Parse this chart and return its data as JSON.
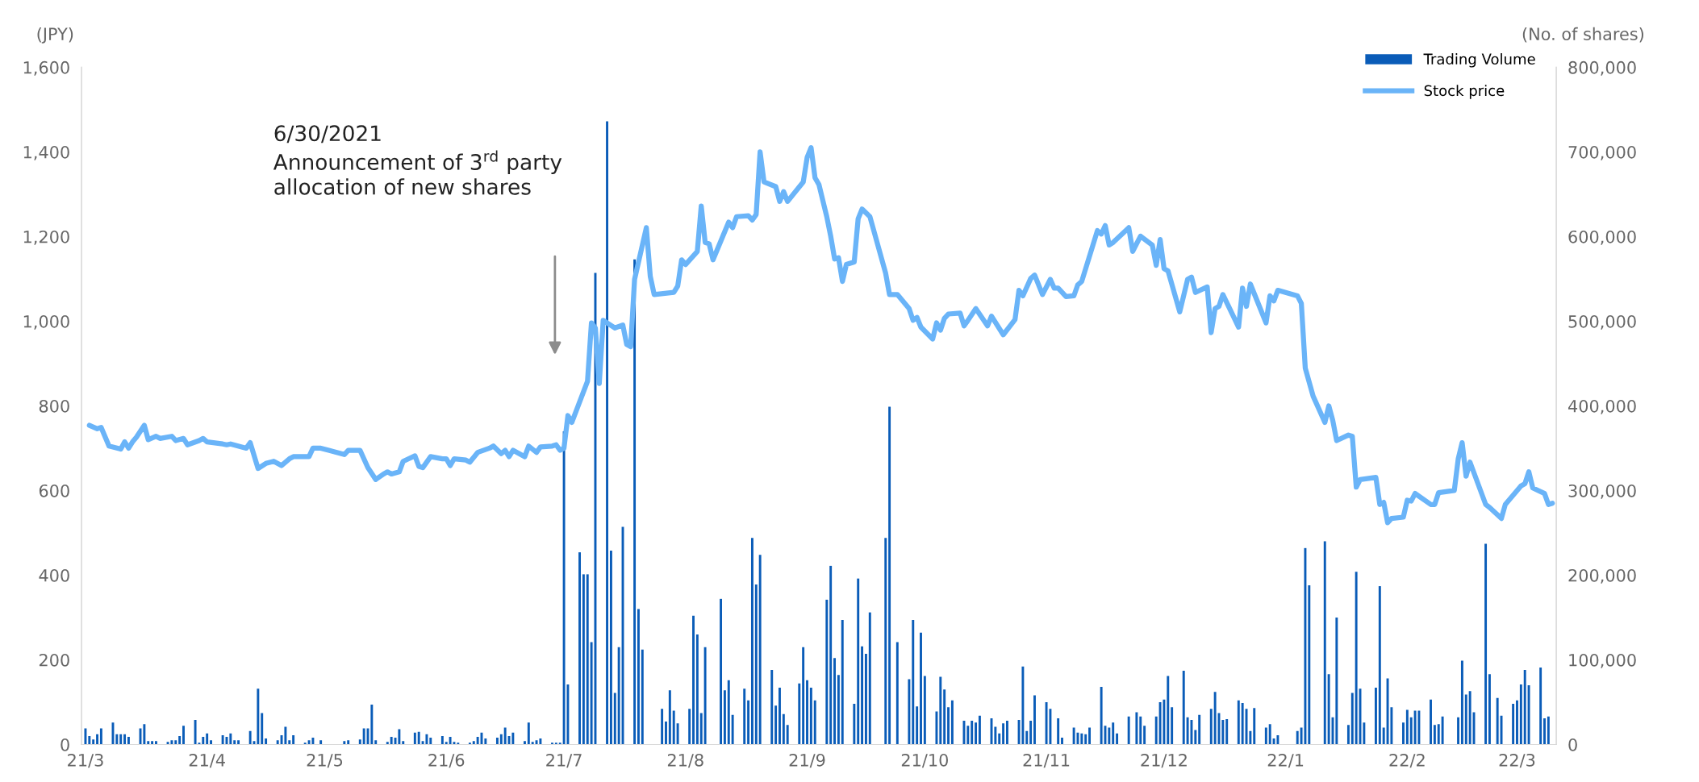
{
  "chart_data": {
    "type": "bar",
    "ylabel": "(JPY)",
    "y2label": "(No. of shares)",
    "xlim": [
      "2021-02-28",
      "2022-03-11"
    ],
    "xticks": [
      {
        "value": "2021-03-01",
        "label": "21/3"
      },
      {
        "value": "2021-04-01",
        "label": "21/4"
      },
      {
        "value": "2021-05-01",
        "label": "21/5"
      },
      {
        "value": "2021-06-01",
        "label": "21/6"
      },
      {
        "value": "2021-07-01",
        "label": "21/7"
      },
      {
        "value": "2021-08-01",
        "label": "21/8"
      },
      {
        "value": "2021-09-01",
        "label": "21/9"
      },
      {
        "value": "2021-10-01",
        "label": "21/10"
      },
      {
        "value": "2021-11-01",
        "label": "21/11"
      },
      {
        "value": "2021-12-01",
        "label": "21/12"
      },
      {
        "value": "2022-01-01",
        "label": "22/1"
      },
      {
        "value": "2022-02-01",
        "label": "22/2"
      },
      {
        "value": "2022-03-01",
        "label": "22/3"
      }
    ],
    "ylim": [
      0,
      1600
    ],
    "yticks": [
      {
        "value": 0,
        "label": "0"
      },
      {
        "value": 200,
        "label": "200"
      },
      {
        "value": 400,
        "label": "400"
      },
      {
        "value": 600,
        "label": "600"
      },
      {
        "value": 800,
        "label": "800"
      },
      {
        "value": 1000,
        "label": "1,000"
      },
      {
        "value": 1200,
        "label": "1,200"
      },
      {
        "value": 1400,
        "label": "1,400"
      },
      {
        "value": 1600,
        "label": "1,600"
      }
    ],
    "y2lim": [
      0,
      800000
    ],
    "y2ticks": [
      {
        "value": 0,
        "label": "0"
      },
      {
        "value": 100000,
        "label": "100,000"
      },
      {
        "value": 200000,
        "label": "200,000"
      },
      {
        "value": 300000,
        "label": "300,000"
      },
      {
        "value": 400000,
        "label": "400,000"
      },
      {
        "value": 500000,
        "label": "500,000"
      },
      {
        "value": 600000,
        "label": "600,000"
      },
      {
        "value": 700000,
        "label": "700,000"
      },
      {
        "value": 800000,
        "label": "800,000"
      }
    ],
    "grid": false,
    "legend": "top right",
    "annotations": [
      "6/30/2021\nAnnouncement of 3$^{rd}$ party\nallocation of new shares"
    ],
    "series": [
      {
        "name": "Trading Volume",
        "axis": "y2",
        "color": "#0a5cb8",
        "x": [
          "2021-03-01",
          "2021-03-02",
          "2021-03-03",
          "2021-03-04",
          "2021-03-05",
          "2021-03-08",
          "2021-03-09",
          "2021-03-10",
          "2021-03-11",
          "2021-03-12",
          "2021-03-15",
          "2021-03-16",
          "2021-03-17",
          "2021-03-18",
          "2021-03-19",
          "2021-03-22",
          "2021-03-23",
          "2021-03-24",
          "2021-03-25",
          "2021-03-26",
          "2021-03-29",
          "2021-03-30",
          "2021-03-31",
          "2021-04-01",
          "2021-04-02",
          "2021-04-05",
          "2021-04-06",
          "2021-04-07",
          "2021-04-08",
          "2021-04-09",
          "2021-04-12",
          "2021-04-13",
          "2021-04-14",
          "2021-04-15",
          "2021-04-16",
          "2021-04-19",
          "2021-04-20",
          "2021-04-21",
          "2021-04-22",
          "2021-04-23",
          "2021-04-26",
          "2021-04-27",
          "2021-04-28",
          "2021-04-30",
          "2021-05-06",
          "2021-05-07",
          "2021-05-10",
          "2021-05-11",
          "2021-05-12",
          "2021-05-13",
          "2021-05-14",
          "2021-05-17",
          "2021-05-18",
          "2021-05-19",
          "2021-05-20",
          "2021-05-21",
          "2021-05-24",
          "2021-05-25",
          "2021-05-26",
          "2021-05-27",
          "2021-05-28",
          "2021-05-31",
          "2021-06-01",
          "2021-06-02",
          "2021-06-03",
          "2021-06-04",
          "2021-06-07",
          "2021-06-08",
          "2021-06-09",
          "2021-06-10",
          "2021-06-11",
          "2021-06-14",
          "2021-06-15",
          "2021-06-16",
          "2021-06-17",
          "2021-06-18",
          "2021-06-21",
          "2021-06-22",
          "2021-06-23",
          "2021-06-24",
          "2021-06-25",
          "2021-06-28",
          "2021-06-29",
          "2021-06-30",
          "2021-07-01",
          "2021-07-02",
          "2021-07-05",
          "2021-07-06",
          "2021-07-07",
          "2021-07-08",
          "2021-07-09",
          "2021-07-12",
          "2021-07-13",
          "2021-07-14",
          "2021-07-15",
          "2021-07-16",
          "2021-07-19",
          "2021-07-20",
          "2021-07-21",
          "2021-07-26",
          "2021-07-27",
          "2021-07-28",
          "2021-07-29",
          "2021-07-30",
          "2021-08-02",
          "2021-08-03",
          "2021-08-04",
          "2021-08-05",
          "2021-08-06",
          "2021-08-10",
          "2021-08-11",
          "2021-08-12",
          "2021-08-13",
          "2021-08-16",
          "2021-08-17",
          "2021-08-18",
          "2021-08-19",
          "2021-08-20",
          "2021-08-23",
          "2021-08-24",
          "2021-08-25",
          "2021-08-26",
          "2021-08-27",
          "2021-08-30",
          "2021-08-31",
          "2021-09-01",
          "2021-09-02",
          "2021-09-03",
          "2021-09-06",
          "2021-09-07",
          "2021-09-08",
          "2021-09-09",
          "2021-09-10",
          "2021-09-13",
          "2021-09-14",
          "2021-09-15",
          "2021-09-16",
          "2021-09-17",
          "2021-09-21",
          "2021-09-22",
          "2021-09-24",
          "2021-09-27",
          "2021-09-28",
          "2021-09-29",
          "2021-09-30",
          "2021-10-01",
          "2021-10-04",
          "2021-10-05",
          "2021-10-06",
          "2021-10-07",
          "2021-10-08",
          "2021-10-11",
          "2021-10-12",
          "2021-10-13",
          "2021-10-14",
          "2021-10-15",
          "2021-10-18",
          "2021-10-19",
          "2021-10-20",
          "2021-10-21",
          "2021-10-22",
          "2021-10-25",
          "2021-10-26",
          "2021-10-27",
          "2021-10-28",
          "2021-10-29",
          "2021-11-01",
          "2021-11-02",
          "2021-11-04",
          "2021-11-05",
          "2021-11-08",
          "2021-11-09",
          "2021-11-10",
          "2021-11-11",
          "2021-11-12",
          "2021-11-15",
          "2021-11-16",
          "2021-11-17",
          "2021-11-18",
          "2021-11-19",
          "2021-11-22",
          "2021-11-24",
          "2021-11-25",
          "2021-11-26",
          "2021-11-29",
          "2021-11-30",
          "2021-12-01",
          "2021-12-02",
          "2021-12-03",
          "2021-12-06",
          "2021-12-07",
          "2021-12-08",
          "2021-12-09",
          "2021-12-10",
          "2021-12-13",
          "2021-12-14",
          "2021-12-15",
          "2021-12-16",
          "2021-12-17",
          "2021-12-20",
          "2021-12-21",
          "2021-12-22",
          "2021-12-23",
          "2021-12-24",
          "2021-12-27",
          "2021-12-28",
          "2021-12-29",
          "2021-12-30",
          "2022-01-04",
          "2022-01-05",
          "2022-01-06",
          "2022-01-07",
          "2022-01-11",
          "2022-01-12",
          "2022-01-13",
          "2022-01-14",
          "2022-01-17",
          "2022-01-18",
          "2022-01-19",
          "2022-01-20",
          "2022-01-21",
          "2022-01-24",
          "2022-01-25",
          "2022-01-26",
          "2022-01-27",
          "2022-01-28",
          "2022-01-31",
          "2022-02-01",
          "2022-02-02",
          "2022-02-03",
          "2022-02-04",
          "2022-02-07",
          "2022-02-08",
          "2022-02-09",
          "2022-02-10",
          "2022-02-14",
          "2022-02-15",
          "2022-02-16",
          "2022-02-17",
          "2022-02-18",
          "2022-02-21",
          "2022-02-22",
          "2022-02-24",
          "2022-02-25",
          "2022-02-28",
          "2022-03-01",
          "2022-03-02",
          "2022-03-03",
          "2022-03-04",
          "2022-03-07",
          "2022-03-08",
          "2022-03-09"
        ],
        "values": [
          19000,
          10000,
          6000,
          12000,
          19000,
          26000,
          12000,
          12000,
          12000,
          9000,
          19000,
          24000,
          4000,
          4000,
          4000,
          3000,
          5000,
          5000,
          10000,
          22000,
          29000,
          2000,
          9000,
          13000,
          5000,
          11000,
          9000,
          13000,
          5000,
          5000,
          16000,
          4000,
          66000,
          37000,
          7000,
          5000,
          11000,
          21000,
          5000,
          11000,
          2000,
          5000,
          8000,
          5000,
          4000,
          5000,
          6000,
          19000,
          19000,
          47000,
          5000,
          3000,
          9000,
          8000,
          18000,
          4000,
          14000,
          15000,
          4000,
          12000,
          8000,
          10000,
          3000,
          9000,
          3000,
          2000,
          2000,
          4000,
          9000,
          14000,
          7000,
          8000,
          12000,
          20000,
          10000,
          14000,
          4000,
          26000,
          3000,
          5000,
          7000,
          2000,
          2000,
          2000,
          370000,
          71000,
          227000,
          201000,
          201000,
          121000,
          557000,
          736000,
          229000,
          61000,
          115000,
          257000,
          573000,
          160000,
          112000,
          42000,
          27000,
          64000,
          40000,
          25000,
          42000,
          152000,
          130000,
          37000,
          115000,
          172000,
          64000,
          76000,
          35000,
          66000,
          52000,
          244000,
          189000,
          224000,
          88000,
          46000,
          67000,
          36000,
          23000,
          72000,
          115000,
          76000,
          67000,
          52000,
          171000,
          211000,
          102000,
          82000,
          147000,
          48000,
          196000,
          116000,
          107000,
          156000,
          244000,
          399000,
          121000,
          77000,
          147000,
          45000,
          132000,
          81000,
          39000,
          80000,
          65000,
          44000,
          52000,
          28000,
          22000,
          28000,
          26000,
          34000,
          31000,
          21000,
          13000,
          25000,
          28000,
          29000,
          92000,
          16000,
          28000,
          58000,
          50000,
          42000,
          31000,
          8000,
          20000,
          14000,
          13000,
          12000,
          20000,
          68000,
          22000,
          20000,
          26000,
          13000,
          33000,
          38000,
          33000,
          22000,
          33000,
          50000,
          53000,
          81000,
          44000,
          87000,
          32000,
          29000,
          17000,
          35000,
          42000,
          62000,
          37000,
          29000,
          30000,
          52000,
          49000,
          42000,
          16000,
          43000,
          20000,
          24000,
          7000,
          11000,
          16000,
          20000,
          232000,
          188000,
          240000,
          83000,
          32000,
          150000,
          23000,
          61000,
          204000,
          66000,
          26000,
          67000,
          187000,
          20000,
          78000,
          44000,
          26000,
          41000,
          32000,
          40000,
          40000,
          53000,
          23000,
          24000,
          33000,
          32000,
          99000,
          59000,
          63000,
          38000,
          237000,
          83000,
          55000,
          34000,
          48000,
          52000,
          71000,
          88000,
          70000,
          91000,
          31000,
          33000
        ]
      },
      {
        "name": "Stock price",
        "type": "line",
        "color": "#6ab4f8",
        "marker": "none",
        "line_style": "solid",
        "x": [
          "2021-03-02",
          "2021-03-04",
          "2021-03-05",
          "2021-03-07",
          "2021-03-10",
          "2021-03-11",
          "2021-03-12",
          "2021-03-13",
          "2021-03-14",
          "2021-03-16",
          "2021-03-17",
          "2021-03-19",
          "2021-03-20",
          "2021-03-23",
          "2021-03-24",
          "2021-03-26",
          "2021-03-27",
          "2021-03-30",
          "2021-03-31",
          "2021-04-01",
          "2021-04-05",
          "2021-04-06",
          "2021-04-07",
          "2021-04-11",
          "2021-04-12",
          "2021-04-14",
          "2021-04-16",
          "2021-04-18",
          "2021-04-20",
          "2021-04-22",
          "2021-04-23",
          "2021-04-27",
          "2021-04-28",
          "2021-04-30",
          "2021-05-02",
          "2021-05-06",
          "2021-05-07",
          "2021-05-10",
          "2021-05-12",
          "2021-05-14",
          "2021-05-16",
          "2021-05-17",
          "2021-05-18",
          "2021-05-20",
          "2021-05-21",
          "2021-05-24",
          "2021-05-25",
          "2021-05-26",
          "2021-05-28",
          "2021-05-31",
          "2021-06-01",
          "2021-06-02",
          "2021-06-03",
          "2021-06-06",
          "2021-06-07",
          "2021-06-09",
          "2021-06-12",
          "2021-06-13",
          "2021-06-15",
          "2021-06-16",
          "2021-06-17",
          "2021-06-18",
          "2021-06-21",
          "2021-06-22",
          "2021-06-24",
          "2021-06-25",
          "2021-06-28",
          "2021-06-29",
          "2021-06-30",
          "2021-07-01",
          "2021-07-02",
          "2021-07-03",
          "2021-07-07",
          "2021-07-08",
          "2021-07-09",
          "2021-07-10",
          "2021-07-11",
          "2021-07-14",
          "2021-07-16",
          "2021-07-17",
          "2021-07-18",
          "2021-07-19",
          "2021-07-22",
          "2021-07-23",
          "2021-07-24",
          "2021-07-29",
          "2021-07-30",
          "2021-07-31",
          "2021-08-01",
          "2021-08-04",
          "2021-08-05",
          "2021-08-06",
          "2021-08-07",
          "2021-08-08",
          "2021-08-12",
          "2021-08-13",
          "2021-08-14",
          "2021-08-17",
          "2021-08-18",
          "2021-08-19",
          "2021-08-20",
          "2021-08-21",
          "2021-08-24",
          "2021-08-25",
          "2021-08-26",
          "2021-08-27",
          "2021-08-31",
          "2021-09-01",
          "2021-09-02",
          "2021-09-03",
          "2021-09-04",
          "2021-09-06",
          "2021-09-07",
          "2021-09-08",
          "2021-09-09",
          "2021-09-10",
          "2021-09-11",
          "2021-09-13",
          "2021-09-14",
          "2021-09-15",
          "2021-09-17",
          "2021-09-21",
          "2021-09-22",
          "2021-09-24",
          "2021-09-27",
          "2021-09-28",
          "2021-09-29",
          "2021-09-30",
          "2021-10-03",
          "2021-10-04",
          "2021-10-05",
          "2021-10-06",
          "2021-10-07",
          "2021-10-10",
          "2021-10-11",
          "2021-10-12",
          "2021-10-14",
          "2021-10-17",
          "2021-10-18",
          "2021-10-21",
          "2021-10-24",
          "2021-10-25",
          "2021-10-26",
          "2021-10-28",
          "2021-10-29",
          "2021-10-31",
          "2021-11-02",
          "2021-11-03",
          "2021-11-04",
          "2021-11-06",
          "2021-11-08",
          "2021-11-09",
          "2021-11-10",
          "2021-11-14",
          "2021-11-15",
          "2021-11-16",
          "2021-11-17",
          "2021-11-18",
          "2021-11-22",
          "2021-11-23",
          "2021-11-25",
          "2021-11-28",
          "2021-11-29",
          "2021-11-30",
          "2021-12-01",
          "2021-12-02",
          "2021-12-05",
          "2021-12-07",
          "2021-12-08",
          "2021-12-09",
          "2021-12-12",
          "2021-12-13",
          "2021-12-14",
          "2021-12-15",
          "2021-12-16",
          "2021-12-20",
          "2021-12-21",
          "2021-12-22",
          "2021-12-23",
          "2021-12-27",
          "2021-12-28",
          "2021-12-29",
          "2021-12-30",
          "2022-01-04",
          "2022-01-05",
          "2022-01-06",
          "2022-01-08",
          "2022-01-11",
          "2022-01-12",
          "2022-01-13",
          "2022-01-14",
          "2022-01-17",
          "2022-01-18",
          "2022-01-19",
          "2022-01-20",
          "2022-01-24",
          "2022-01-25",
          "2022-01-26",
          "2022-01-27",
          "2022-01-28",
          "2022-01-31",
          "2022-02-01",
          "2022-02-02",
          "2022-02-03",
          "2022-02-07",
          "2022-02-08",
          "2022-02-09",
          "2022-02-13",
          "2022-02-14",
          "2022-02-15",
          "2022-02-16",
          "2022-02-17",
          "2022-02-21",
          "2022-02-22",
          "2022-02-25",
          "2022-02-26",
          "2022-03-02",
          "2022-03-03",
          "2022-03-04",
          "2022-03-05",
          "2022-03-08",
          "2022-03-09",
          "2022-03-10"
        ],
        "values": [
          754,
          746,
          749,
          705,
          698,
          715,
          700,
          715,
          726,
          754,
          720,
          728,
          723,
          728,
          718,
          723,
          708,
          718,
          723,
          715,
          710,
          708,
          710,
          700,
          713,
          652,
          664,
          669,
          659,
          675,
          680,
          680,
          700,
          700,
          695,
          685,
          695,
          695,
          654,
          626,
          639,
          644,
          639,
          644,
          669,
          682,
          657,
          654,
          680,
          675,
          675,
          659,
          675,
          672,
          667,
          690,
          700,
          705,
          687,
          695,
          680,
          695,
          680,
          705,
          690,
          703,
          705,
          708,
          695,
          700,
          777,
          761,
          858,
          996,
          984,
          853,
          1002,
          984,
          991,
          945,
          940,
          1099,
          1221,
          1106,
          1063,
          1068,
          1083,
          1145,
          1134,
          1165,
          1272,
          1186,
          1183,
          1145,
          1234,
          1221,
          1247,
          1249,
          1239,
          1252,
          1400,
          1329,
          1318,
          1283,
          1306,
          1283,
          1329,
          1387,
          1410,
          1339,
          1323,
          1247,
          1201,
          1147,
          1150,
          1094,
          1134,
          1140,
          1242,
          1265,
          1247,
          1114,
          1063,
          1063,
          1030,
          1002,
          1009,
          986,
          958,
          996,
          979,
          1007,
          1017,
          1019,
          989,
          1002,
          1030,
          989,
          1012,
          968,
          1004,
          1073,
          1060,
          1101,
          1109,
          1063,
          1099,
          1078,
          1078,
          1058,
          1060,
          1086,
          1094,
          1214,
          1206,
          1226,
          1180,
          1186,
          1221,
          1165,
          1201,
          1180,
          1132,
          1193,
          1124,
          1119,
          1022,
          1099,
          1104,
          1068,
          1081,
          973,
          1030,
          1035,
          1063,
          986,
          1078,
          1035,
          1088,
          996,
          1060,
          1048,
          1073,
          1060,
          1042,
          889,
          823,
          761,
          800,
          766,
          718,
          731,
          728,
          608,
          626,
          631,
          567,
          572,
          524,
          534,
          537,
          577,
          575,
          593,
          567,
          567,
          595,
          600,
          675,
          713,
          634,
          667,
          567,
          560,
          534,
          567,
          611,
          616,
          644,
          606,
          593,
          567,
          570
        ]
      }
    ]
  }
}
